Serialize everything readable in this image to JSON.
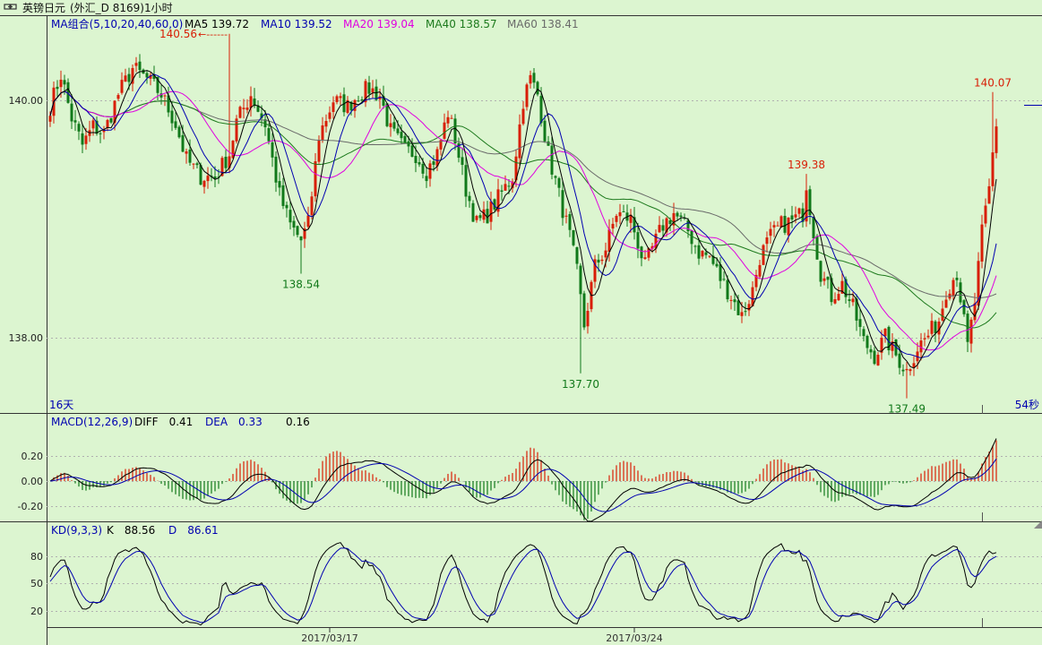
{
  "header": {
    "symbol_icon": "link-icon",
    "title": "英镑日元",
    "subtitle": "(外汇_D 8169)1小时"
  },
  "colors": {
    "background": "#dcf5d0",
    "up": "#d81e06",
    "down": "#11791a",
    "axis": "#1a1a1a",
    "ma5": "#000000",
    "ma10": "#0000b0",
    "ma20": "#e000e0",
    "ma40": "#1d7a1d",
    "ma60": "#6a6a6a",
    "label_blue": "#0000b0",
    "label_red": "#d81e06",
    "label_green": "#11791a"
  },
  "main_panel": {
    "indicator": "MA组合(5,10,20,40,60,0)",
    "legend": [
      {
        "key": "ma5",
        "label": "MA5",
        "value": "139.72"
      },
      {
        "key": "ma10",
        "label": "MA10",
        "value": "139.52"
      },
      {
        "key": "ma20",
        "label": "MA20",
        "value": "139.04"
      },
      {
        "key": "ma40",
        "label": "MA40",
        "value": "138.57"
      },
      {
        "key": "ma60",
        "label": "MA60",
        "value": "138.41"
      }
    ],
    "y_ticks": [
      "140.00",
      "138.00"
    ],
    "corner_left": "16天",
    "corner_right": "54秒",
    "annotations": [
      {
        "text": "140.56",
        "price": 140.56,
        "bar": 50,
        "arrow": "←------",
        "color": "red",
        "position": "left"
      },
      {
        "text": "138.54",
        "price": 138.54,
        "bar": 70,
        "color": "green",
        "position": "below"
      },
      {
        "text": "137.70",
        "price": 137.7,
        "bar": 148,
        "color": "green",
        "position": "below"
      },
      {
        "text": "139.38",
        "price": 139.38,
        "bar": 211,
        "color": "red",
        "position": "above"
      },
      {
        "text": "137.49",
        "price": 137.49,
        "bar": 239,
        "color": "green",
        "position": "below"
      },
      {
        "text": "140.07",
        "price": 140.07,
        "bar": 263,
        "color": "red",
        "position": "above"
      }
    ]
  },
  "macd_panel": {
    "indicator": "MACD(12,26,9)",
    "diff_label": "DIFF",
    "diff_value": "0.41",
    "dea_label": "DEA",
    "dea_value": "0.33",
    "macd_value": "0.16",
    "y_ticks": [
      "0.20",
      "0.00",
      "-0.20"
    ]
  },
  "kd_panel": {
    "indicator": "KD(9,3,3)",
    "k_label": "K",
    "k_value": "88.56",
    "d_label": "D",
    "d_value": "86.61",
    "y_ticks": [
      "80",
      "50",
      "20"
    ]
  },
  "x_axis": {
    "labels": [
      {
        "text": "2017/03/17",
        "bar": 78
      },
      {
        "text": "2017/03/24",
        "bar": 163
      }
    ]
  },
  "chart_data": {
    "type": "candlestick",
    "bars": 265,
    "ylim": [
      137.2,
      140.75
    ],
    "waypoints": [
      [
        0,
        139.95
      ],
      [
        3,
        140.22
      ],
      [
        6,
        139.85
      ],
      [
        9,
        139.62
      ],
      [
        12,
        139.78
      ],
      [
        15,
        139.72
      ],
      [
        19,
        140.05
      ],
      [
        23,
        140.27
      ],
      [
        27,
        140.18
      ],
      [
        31,
        140.05
      ],
      [
        35,
        139.8
      ],
      [
        38,
        139.5
      ],
      [
        42,
        139.36
      ],
      [
        46,
        139.35
      ],
      [
        50,
        139.55
      ],
      [
        52,
        139.82
      ],
      [
        56,
        140.05
      ],
      [
        60,
        139.8
      ],
      [
        64,
        139.2
      ],
      [
        67,
        138.95
      ],
      [
        70,
        138.82
      ],
      [
        72,
        138.96
      ],
      [
        75,
        139.7
      ],
      [
        79,
        140.0
      ],
      [
        83,
        139.95
      ],
      [
        86,
        140.05
      ],
      [
        89,
        140.1
      ],
      [
        92,
        140.04
      ],
      [
        95,
        139.74
      ],
      [
        99,
        139.58
      ],
      [
        102,
        139.55
      ],
      [
        105,
        139.4
      ],
      [
        108,
        139.55
      ],
      [
        111,
        139.9
      ],
      [
        113,
        139.68
      ],
      [
        116,
        139.25
      ],
      [
        119,
        138.96
      ],
      [
        122,
        139.04
      ],
      [
        126,
        139.22
      ],
      [
        129,
        139.36
      ],
      [
        132,
        140.0
      ],
      [
        134,
        140.18
      ],
      [
        136,
        140.05
      ],
      [
        139,
        139.55
      ],
      [
        142,
        139.2
      ],
      [
        145,
        138.85
      ],
      [
        147,
        138.55
      ],
      [
        149,
        138.1
      ],
      [
        152,
        138.6
      ],
      [
        155,
        138.75
      ],
      [
        158,
        139.05
      ],
      [
        162,
        139.0
      ],
      [
        166,
        138.6
      ],
      [
        168,
        138.75
      ],
      [
        171,
        138.95
      ],
      [
        174,
        139.05
      ],
      [
        178,
        138.9
      ],
      [
        181,
        138.72
      ],
      [
        184,
        138.68
      ],
      [
        187,
        138.5
      ],
      [
        190,
        138.35
      ],
      [
        193,
        138.18
      ],
      [
        196,
        138.4
      ],
      [
        198,
        138.68
      ],
      [
        201,
        138.85
      ],
      [
        204,
        138.95
      ],
      [
        207,
        138.98
      ],
      [
        210,
        139.05
      ],
      [
        211,
        139.3
      ],
      [
        213,
        138.9
      ],
      [
        215,
        138.55
      ],
      [
        218,
        138.35
      ],
      [
        221,
        138.45
      ],
      [
        224,
        138.25
      ],
      [
        227,
        137.97
      ],
      [
        230,
        137.85
      ],
      [
        233,
        138.0
      ],
      [
        236,
        137.85
      ],
      [
        239,
        137.72
      ],
      [
        242,
        137.92
      ],
      [
        245,
        138.02
      ],
      [
        248,
        138.15
      ],
      [
        250,
        138.4
      ],
      [
        253,
        138.55
      ],
      [
        256,
        137.92
      ],
      [
        258,
        138.3
      ],
      [
        260,
        138.88
      ],
      [
        262,
        139.25
      ],
      [
        263,
        139.55
      ],
      [
        264,
        139.75
      ]
    ],
    "last": {
      "MA5": 139.72,
      "MA10": 139.52,
      "MA20": 139.04,
      "MA40": 138.57,
      "MA60": 138.41,
      "DIFF": 0.41,
      "DEA": 0.33,
      "MACD": 0.16,
      "K": 88.56,
      "D": 86.61
    }
  }
}
